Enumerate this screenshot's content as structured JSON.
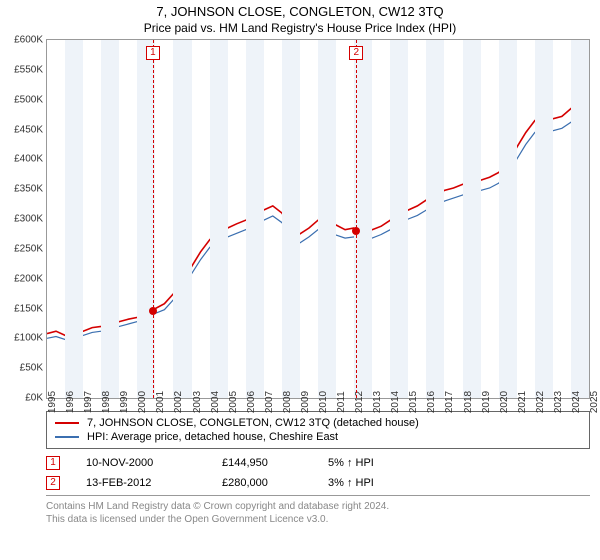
{
  "title": "7, JOHNSON CLOSE, CONGLETON, CW12 3TQ",
  "subtitle": "Price paid vs. HM Land Registry's House Price Index (HPI)",
  "chart": {
    "type": "line",
    "y": {
      "min": 0,
      "max": 600,
      "step": 50,
      "prefix": "£",
      "suffix": "K"
    },
    "x": {
      "min": 1995,
      "max": 2025,
      "step": 1
    },
    "alt_band_color": "#eef3f9",
    "grid_color": "#dddddd",
    "background": "#ffffff",
    "series": [
      {
        "name": "7, JOHNSON CLOSE, CONGLETON, CW12 3TQ (detached house)",
        "color": "#d40000",
        "width": 1.6,
        "data": [
          [
            1995,
            108
          ],
          [
            1995.5,
            112
          ],
          [
            1996,
            105
          ],
          [
            1996.5,
            110
          ],
          [
            1997,
            112
          ],
          [
            1997.5,
            118
          ],
          [
            1998,
            120
          ],
          [
            1998.5,
            123
          ],
          [
            1999,
            128
          ],
          [
            1999.5,
            132
          ],
          [
            2000,
            135
          ],
          [
            2000.5,
            142
          ],
          [
            2001,
            150
          ],
          [
            2001.5,
            158
          ],
          [
            2002,
            175
          ],
          [
            2002.5,
            195
          ],
          [
            2003,
            220
          ],
          [
            2003.5,
            245
          ],
          [
            2004,
            265
          ],
          [
            2004.5,
            280
          ],
          [
            2005,
            285
          ],
          [
            2005.5,
            292
          ],
          [
            2006,
            298
          ],
          [
            2006.5,
            305
          ],
          [
            2007,
            315
          ],
          [
            2007.5,
            322
          ],
          [
            2008,
            310
          ],
          [
            2008.5,
            285
          ],
          [
            2009,
            275
          ],
          [
            2009.5,
            285
          ],
          [
            2010,
            298
          ],
          [
            2010.5,
            295
          ],
          [
            2011,
            290
          ],
          [
            2011.5,
            282
          ],
          [
            2012,
            285
          ],
          [
            2012.5,
            280
          ],
          [
            2013,
            282
          ],
          [
            2013.5,
            288
          ],
          [
            2014,
            298
          ],
          [
            2014.5,
            308
          ],
          [
            2015,
            315
          ],
          [
            2015.5,
            322
          ],
          [
            2016,
            332
          ],
          [
            2016.5,
            340
          ],
          [
            2017,
            348
          ],
          [
            2017.5,
            352
          ],
          [
            2018,
            358
          ],
          [
            2018.5,
            362
          ],
          [
            2019,
            365
          ],
          [
            2019.5,
            370
          ],
          [
            2020,
            378
          ],
          [
            2020.5,
            395
          ],
          [
            2021,
            420
          ],
          [
            2021.5,
            445
          ],
          [
            2022,
            465
          ],
          [
            2022.5,
            475
          ],
          [
            2023,
            468
          ],
          [
            2023.5,
            472
          ],
          [
            2024,
            485
          ],
          [
            2024.5,
            498
          ],
          [
            2025,
            505
          ]
        ]
      },
      {
        "name": "HPI: Average price, detached house, Cheshire East",
        "color": "#3b6fb0",
        "width": 1.2,
        "data": [
          [
            1995,
            100
          ],
          [
            1995.5,
            103
          ],
          [
            1996,
            98
          ],
          [
            1996.5,
            102
          ],
          [
            1997,
            105
          ],
          [
            1997.5,
            110
          ],
          [
            1998,
            112
          ],
          [
            1998.5,
            115
          ],
          [
            1999,
            120
          ],
          [
            1999.5,
            124
          ],
          [
            2000,
            128
          ],
          [
            2000.5,
            135
          ],
          [
            2001,
            142
          ],
          [
            2001.5,
            148
          ],
          [
            2002,
            165
          ],
          [
            2002.5,
            185
          ],
          [
            2003,
            208
          ],
          [
            2003.5,
            232
          ],
          [
            2004,
            252
          ],
          [
            2004.5,
            265
          ],
          [
            2005,
            270
          ],
          [
            2005.5,
            276
          ],
          [
            2006,
            282
          ],
          [
            2006.5,
            288
          ],
          [
            2007,
            298
          ],
          [
            2007.5,
            305
          ],
          [
            2008,
            294
          ],
          [
            2008.5,
            270
          ],
          [
            2009,
            260
          ],
          [
            2009.5,
            270
          ],
          [
            2010,
            282
          ],
          [
            2010.5,
            278
          ],
          [
            2011,
            273
          ],
          [
            2011.5,
            268
          ],
          [
            2012,
            270
          ],
          [
            2012.5,
            265
          ],
          [
            2013,
            268
          ],
          [
            2013.5,
            274
          ],
          [
            2014,
            282
          ],
          [
            2014.5,
            292
          ],
          [
            2015,
            300
          ],
          [
            2015.5,
            306
          ],
          [
            2016,
            315
          ],
          [
            2016.5,
            322
          ],
          [
            2017,
            330
          ],
          [
            2017.5,
            335
          ],
          [
            2018,
            340
          ],
          [
            2018.5,
            345
          ],
          [
            2019,
            348
          ],
          [
            2019.5,
            352
          ],
          [
            2020,
            360
          ],
          [
            2020.5,
            377
          ],
          [
            2021,
            400
          ],
          [
            2021.5,
            425
          ],
          [
            2022,
            445
          ],
          [
            2022.5,
            455
          ],
          [
            2023,
            448
          ],
          [
            2023.5,
            452
          ],
          [
            2024,
            462
          ],
          [
            2024.5,
            476
          ],
          [
            2025,
            485
          ]
        ]
      }
    ],
    "markers": [
      {
        "n": "1",
        "x": 2000.86,
        "y": 145,
        "color": "#d40000"
      },
      {
        "n": "2",
        "x": 2012.12,
        "y": 280,
        "color": "#d40000"
      }
    ]
  },
  "transactions": [
    {
      "n": "1",
      "date": "10-NOV-2000",
      "price": "£144,950",
      "delta": "5% ↑ HPI",
      "color": "#d40000"
    },
    {
      "n": "2",
      "date": "13-FEB-2012",
      "price": "£280,000",
      "delta": "3% ↑ HPI",
      "color": "#d40000"
    }
  ],
  "footer": {
    "l1": "Contains HM Land Registry data © Crown copyright and database right 2024.",
    "l2": "This data is licensed under the Open Government Licence v3.0."
  }
}
